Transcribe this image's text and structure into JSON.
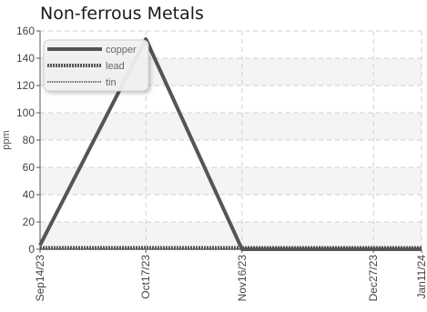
{
  "chart_data": {
    "type": "line",
    "title": "Non-ferrous Metals",
    "xlabel": "",
    "ylabel": "ppm",
    "x": [
      "2023-09-14",
      "2023-10-17",
      "2023-11-16",
      "2023-12-27",
      "2024-01-11"
    ],
    "x_tick_labels": [
      "Sep14/23",
      "Oct17/23",
      "Nov16/23",
      "Dec27/23",
      "Jan11/24"
    ],
    "xlim": [
      "2023-09-14",
      "2024-01-11"
    ],
    "ylim": [
      0,
      160
    ],
    "y_ticks": [
      0,
      20,
      40,
      60,
      80,
      100,
      120,
      140,
      160
    ],
    "grid": true,
    "legend_position": "top-left",
    "series": [
      {
        "name": "copper",
        "values": [
          3,
          154,
          0,
          0,
          0
        ],
        "color": "#555555",
        "style": "solid"
      },
      {
        "name": "lead",
        "values": [
          1,
          1,
          1,
          1,
          1
        ],
        "color": "#555555",
        "style": "dotted-thick"
      },
      {
        "name": "tin",
        "values": [
          0,
          0,
          0,
          0,
          0
        ],
        "color": "#777777",
        "style": "dotted-thin"
      }
    ]
  }
}
